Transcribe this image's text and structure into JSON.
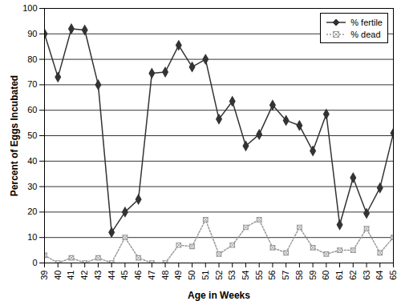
{
  "chart_data": {
    "type": "line",
    "x_label": "Age in Weeks",
    "y_label": "Percent of Eggs Incubated",
    "x": [
      39,
      40,
      41,
      42,
      43,
      44,
      45,
      46,
      47,
      48,
      49,
      50,
      51,
      52,
      53,
      54,
      55,
      56,
      57,
      58,
      59,
      60,
      61,
      62,
      63,
      64,
      65
    ],
    "series": [
      {
        "name": "% fertile",
        "color": "#333333",
        "marker": "diamond",
        "line_style": "solid",
        "values": [
          90,
          73,
          92,
          91.5,
          70,
          12,
          20,
          25,
          74.5,
          75,
          85.5,
          77,
          80,
          56.5,
          63.5,
          46,
          50.5,
          62,
          56,
          54,
          44,
          58.5,
          15,
          33.5,
          19.5,
          29.5,
          51
        ]
      },
      {
        "name": "% dead",
        "color": "#999999",
        "marker": "square",
        "line_style": "dotted",
        "values": [
          3,
          0,
          2,
          0,
          2,
          0,
          10,
          2,
          0,
          0,
          7,
          6.5,
          17,
          3.5,
          7,
          14,
          17,
          6,
          4,
          14,
          6,
          3.5,
          5,
          5,
          13.5,
          4,
          10
        ]
      }
    ],
    "xlim": [
      39,
      65
    ],
    "xticks": [
      39,
      40,
      41,
      42,
      43,
      44,
      45,
      46,
      47,
      48,
      49,
      50,
      51,
      52,
      53,
      54,
      55,
      56,
      57,
      58,
      59,
      60,
      61,
      62,
      63,
      64,
      65
    ],
    "ylim": [
      0,
      100
    ],
    "yticks": [
      0,
      10,
      20,
      30,
      40,
      50,
      60,
      70,
      80,
      90,
      100
    ],
    "grid": true,
    "legend": "top-right"
  }
}
